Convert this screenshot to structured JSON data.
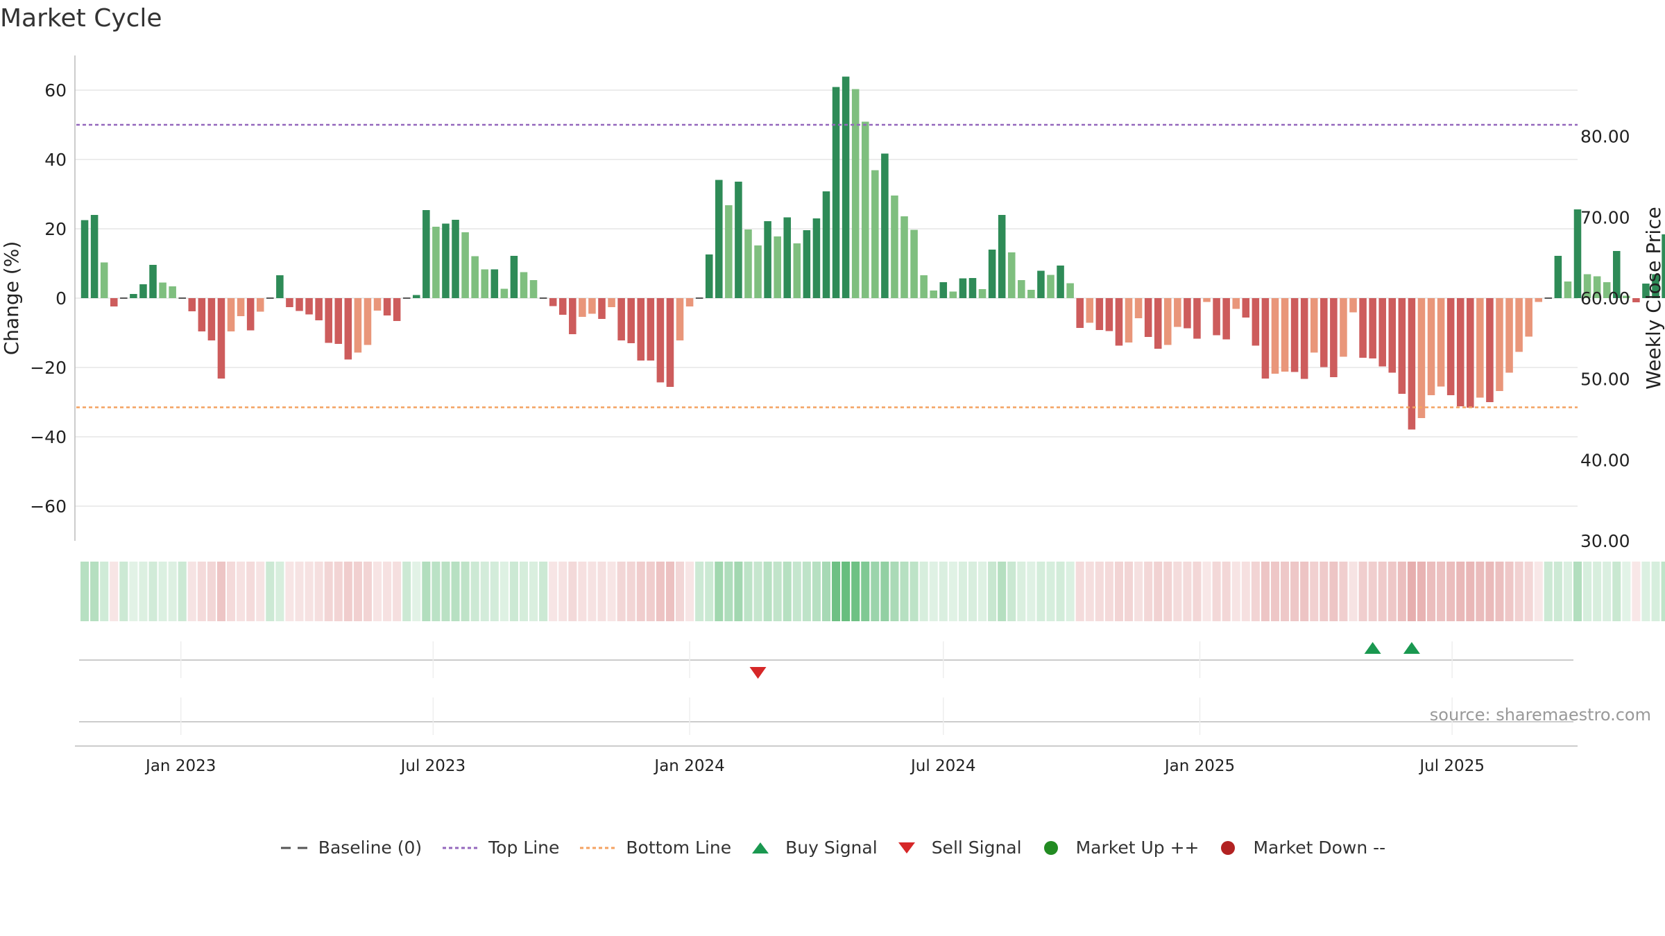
{
  "chart_data": {
    "type": "bar",
    "title": "Market Cycle",
    "ylabel": "Change (%)",
    "y2label": "Weekly Close Price",
    "ylim": [
      -70,
      70
    ],
    "y2lim": [
      30,
      90
    ],
    "yticks": [
      "60",
      "40",
      "20",
      "0",
      "−20",
      "−40",
      "−60"
    ],
    "yticks_values": [
      60,
      40,
      20,
      0,
      -20,
      -40,
      -60
    ],
    "y2ticks": [
      "80.00",
      "70.00",
      "60.00",
      "50.00",
      "40.00",
      "30.00"
    ],
    "y2ticks_values": [
      80,
      70,
      60,
      50,
      40,
      30
    ],
    "xdomain": [
      "2022-10-17",
      "2025-09-29"
    ],
    "xticks": [
      {
        "date": "2023-01-01",
        "label": "Jan 2023"
      },
      {
        "date": "2023-07-01",
        "label": "Jul 2023"
      },
      {
        "date": "2024-01-01",
        "label": "Jan 2024"
      },
      {
        "date": "2024-07-01",
        "label": "Jul 2024"
      },
      {
        "date": "2025-01-01",
        "label": "Jan 2025"
      },
      {
        "date": "2025-07-01",
        "label": "Jul 2025"
      }
    ],
    "start_week": "2022-10-24",
    "values": [
      22.5,
      24,
      10.3,
      -2.4,
      0,
      1.2,
      4,
      9.6,
      4.5,
      3.4,
      0,
      -3.8,
      -9.6,
      -12.2,
      -23.2,
      -9.6,
      -5.2,
      -9.3,
      -3.9,
      0,
      6.6,
      -2.6,
      -3.7,
      -4.7,
      -6.4,
      -12.9,
      -13.2,
      -17.7,
      -15.7,
      -13.5,
      -3.6,
      -5,
      -6.6,
      0,
      0.9,
      25.4,
      20.6,
      21.5,
      22.6,
      19,
      12.1,
      8.3,
      8.3,
      2.7,
      12.2,
      7.5,
      5.2,
      0,
      -2.3,
      -4.8,
      -10.4,
      -5.4,
      -4.5,
      -6,
      -2.6,
      -12.2,
      -13,
      -18,
      -18,
      -24.3,
      -25.6,
      -12.2,
      -2.4,
      0,
      12.6,
      34.1,
      26.8,
      33.6,
      19.8,
      15.2,
      22.2,
      17.8,
      23.3,
      15.8,
      19.6,
      23,
      30.8,
      60.9,
      63.9,
      60.3,
      50.9,
      36.9,
      41.7,
      29.6,
      23.6,
      19.7,
      6.6,
      2.2,
      4.6,
      1.9,
      5.7,
      5.8,
      2.6,
      14,
      24,
      13.2,
      5.2,
      2.4,
      7.9,
      6.7,
      9.4,
      4.3,
      -8.6,
      -7.1,
      -9.2,
      -9.5,
      -13.7,
      -12.8,
      -5.8,
      -11.2,
      -14.6,
      -13.5,
      -8.3,
      -8.7,
      -11.7,
      -1.1,
      -10.7,
      -11.9,
      -3.1,
      -5.6,
      -13.7,
      -23.2,
      -21.8,
      -21.2,
      -21.3,
      -23.3,
      -15.7,
      -19.9,
      -22.8,
      -16.9,
      -4.1,
      -17.2,
      -17.4,
      -19.7,
      -21.5,
      -27.6,
      -37.9,
      -34.6,
      -28,
      -25.5,
      -28,
      -31.2,
      -31.6,
      -28.7,
      -30,
      -26.8,
      -21.5,
      -15.5,
      -11.1,
      -1.1,
      0,
      12.2,
      4.8,
      25.6,
      6.9,
      6.3,
      4.6,
      13.6,
      0.7,
      -1.2,
      4.2,
      6.9,
      18.4
    ],
    "top_line": 50,
    "bottom_line": -31.5,
    "buy_signals": [
      "2025-05-05",
      "2025-06-02"
    ],
    "sell_signals": [
      "2024-02-19"
    ],
    "colors": {
      "strong_up": "#2e8b57",
      "up": "#7fbf7f",
      "strong_down": "#cd5c5c",
      "down": "#e9967a",
      "top_line": "#9467bd",
      "bottom_line": "#f4a261",
      "baseline": "#555555",
      "buy": "#1a9850",
      "sell": "#d62728",
      "market_up": "#228b22",
      "market_down": "#b22222"
    },
    "source": "source: sharemaestro.com",
    "legend": [
      {
        "key": "baseline",
        "label": "Baseline (0)"
      },
      {
        "key": "top",
        "label": "Top Line"
      },
      {
        "key": "bottom",
        "label": "Bottom Line"
      },
      {
        "key": "buy",
        "label": "Buy Signal"
      },
      {
        "key": "sell",
        "label": "Sell Signal"
      },
      {
        "key": "mup",
        "label": "Market Up ++"
      },
      {
        "key": "mdown",
        "label": "Market Down --"
      }
    ]
  }
}
